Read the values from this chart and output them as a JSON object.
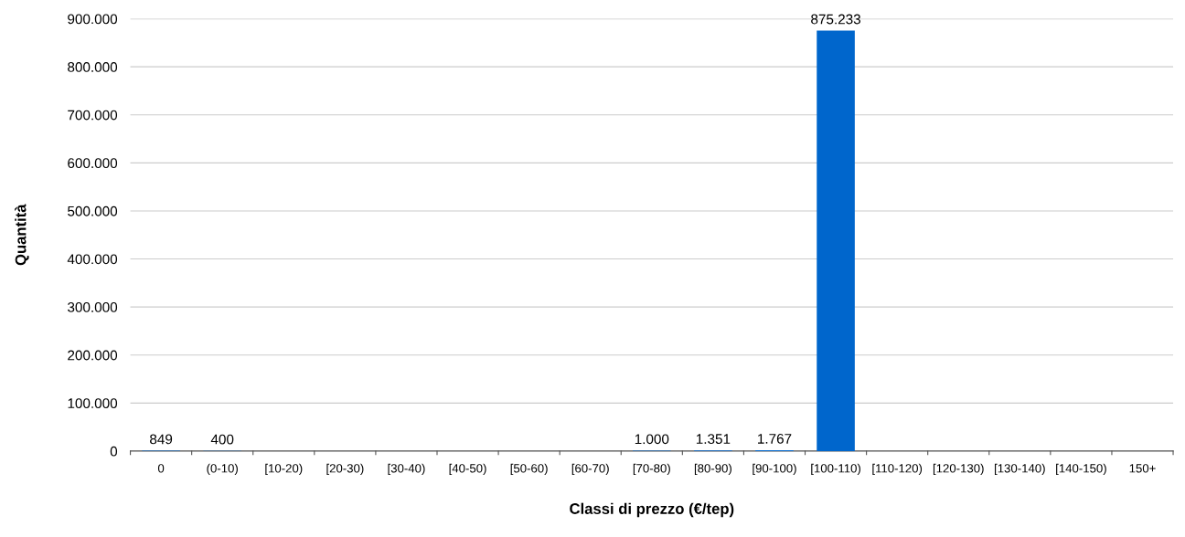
{
  "chart_data": {
    "type": "bar",
    "xlabel": "Classi di prezzo (€/tep)",
    "ylabel": "Quantità",
    "categories": [
      "0",
      "(0-10)",
      "[10-20)",
      "[20-30)",
      "[30-40)",
      "[40-50)",
      "[50-60)",
      "[60-70)",
      "[70-80)",
      "[80-90)",
      "[90-100)",
      "[100-110)",
      "[110-120)",
      "[120-130)",
      "[130-140)",
      "[140-150)",
      "150+"
    ],
    "values": [
      849,
      400,
      0,
      0,
      0,
      0,
      0,
      0,
      1000,
      1351,
      1767,
      875233,
      0,
      0,
      0,
      0,
      0
    ],
    "value_labels": [
      "849",
      "400",
      null,
      null,
      null,
      null,
      null,
      null,
      "1.000",
      "1.351",
      "1.767",
      "875.233",
      null,
      null,
      null,
      null,
      null
    ],
    "color": "#0066cc",
    "ylim": [
      0,
      900000
    ],
    "yticks": [
      0,
      {
        "value": 100000,
        "label": "100.000"
      },
      {
        "value": 200000,
        "label": "200.000"
      },
      {
        "value": 300000,
        "label": "300.000"
      },
      {
        "value": 400000,
        "label": "400.000"
      },
      {
        "value": 500000,
        "label": "500.000"
      },
      {
        "value": 600000,
        "label": "600.000"
      },
      {
        "value": 700000,
        "label": "700.000"
      },
      {
        "value": 800000,
        "label": "800.000"
      },
      {
        "value": 900000,
        "label": "900.000"
      }
    ],
    "grid": "y",
    "legend": false
  }
}
